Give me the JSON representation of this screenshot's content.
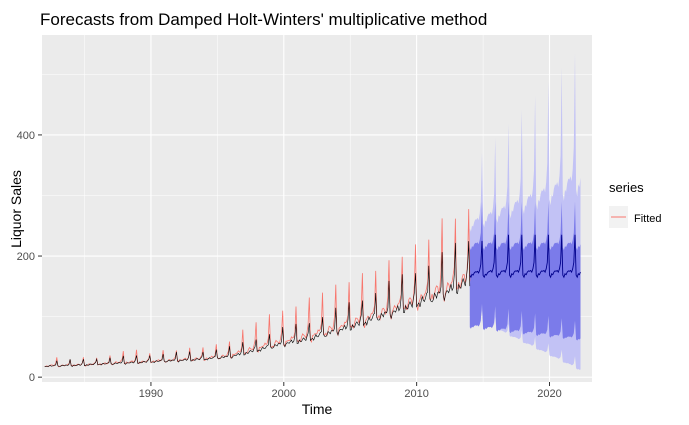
{
  "chart_data": {
    "type": "line",
    "title": "Forecasts from Damped Holt-Winters' multiplicative method",
    "xlabel": "Time",
    "ylabel": "Liquor Sales",
    "xlim": [
      1981.8,
      2023.2
    ],
    "ylim": [
      -8,
      565
    ],
    "x_ticks": [
      1990,
      2000,
      2010,
      2020
    ],
    "y_ticks": [
      0,
      200,
      400
    ],
    "grid": true,
    "legend": {
      "title": "series",
      "position": "right",
      "entries": [
        {
          "name": "Fitted",
          "color": "#f8766d"
        }
      ]
    },
    "colors": {
      "observed": "#000000",
      "fitted": "#f8766d",
      "forecast": "#00008b",
      "pi80": "#7b7bea",
      "pi95": "#c2c2f5",
      "panel": "#ebebeb",
      "grid": "#ffffff"
    },
    "series": [
      {
        "name": "observed",
        "start": 1982.0,
        "end": 2014.0,
        "annual_base_points": [
          [
            1982,
            17
          ],
          [
            1985,
            19
          ],
          [
            1988,
            22
          ],
          [
            1991,
            25
          ],
          [
            1994,
            28
          ],
          [
            1996,
            32
          ],
          [
            1998,
            42
          ],
          [
            2000,
            52
          ],
          [
            2002,
            60
          ],
          [
            2004,
            72
          ],
          [
            2006,
            85
          ],
          [
            2008,
            100
          ],
          [
            2010,
            115
          ],
          [
            2012,
            130
          ],
          [
            2014,
            150
          ]
        ],
        "december_peak_ratio": 1.55
      },
      {
        "name": "Fitted",
        "start": 1982.0,
        "end": 2014.0,
        "annual_peaks": [
          [
            1983,
            32
          ],
          [
            1984,
            30
          ],
          [
            1985,
            32
          ],
          [
            1986,
            33
          ],
          [
            1987,
            35
          ],
          [
            1988,
            45
          ],
          [
            1989,
            44
          ],
          [
            1990,
            40
          ],
          [
            1991,
            44
          ],
          [
            1992,
            45
          ],
          [
            1993,
            48
          ],
          [
            1994,
            50
          ],
          [
            1995,
            54
          ],
          [
            1996,
            60
          ],
          [
            1997,
            80
          ],
          [
            1998,
            92
          ],
          [
            1999,
            105
          ],
          [
            2000,
            110
          ],
          [
            2001,
            118
          ],
          [
            2002,
            132
          ],
          [
            2003,
            142
          ],
          [
            2004,
            152
          ],
          [
            2005,
            160
          ],
          [
            2006,
            170
          ],
          [
            2007,
            180
          ],
          [
            2008,
            190
          ],
          [
            2009,
            205
          ],
          [
            2010,
            215
          ],
          [
            2011,
            235
          ],
          [
            2012,
            258
          ],
          [
            2013,
            270
          ]
        ]
      },
      {
        "name": "forecast",
        "start": 2014.0,
        "end": 2022.3,
        "base": 165,
        "peak": 235,
        "peak_2015": 225,
        "pi80": {
          "upper_base": 210,
          "upper_peak": 290,
          "lower_base": 80,
          "lower_peak": 125,
          "lower_base_end": 60
        },
        "pi95": {
          "upper_base": 240,
          "upper_peak_start": 350,
          "upper_peak_end": 545,
          "lower_base_start": 100,
          "lower_base_end": 10
        }
      }
    ]
  }
}
